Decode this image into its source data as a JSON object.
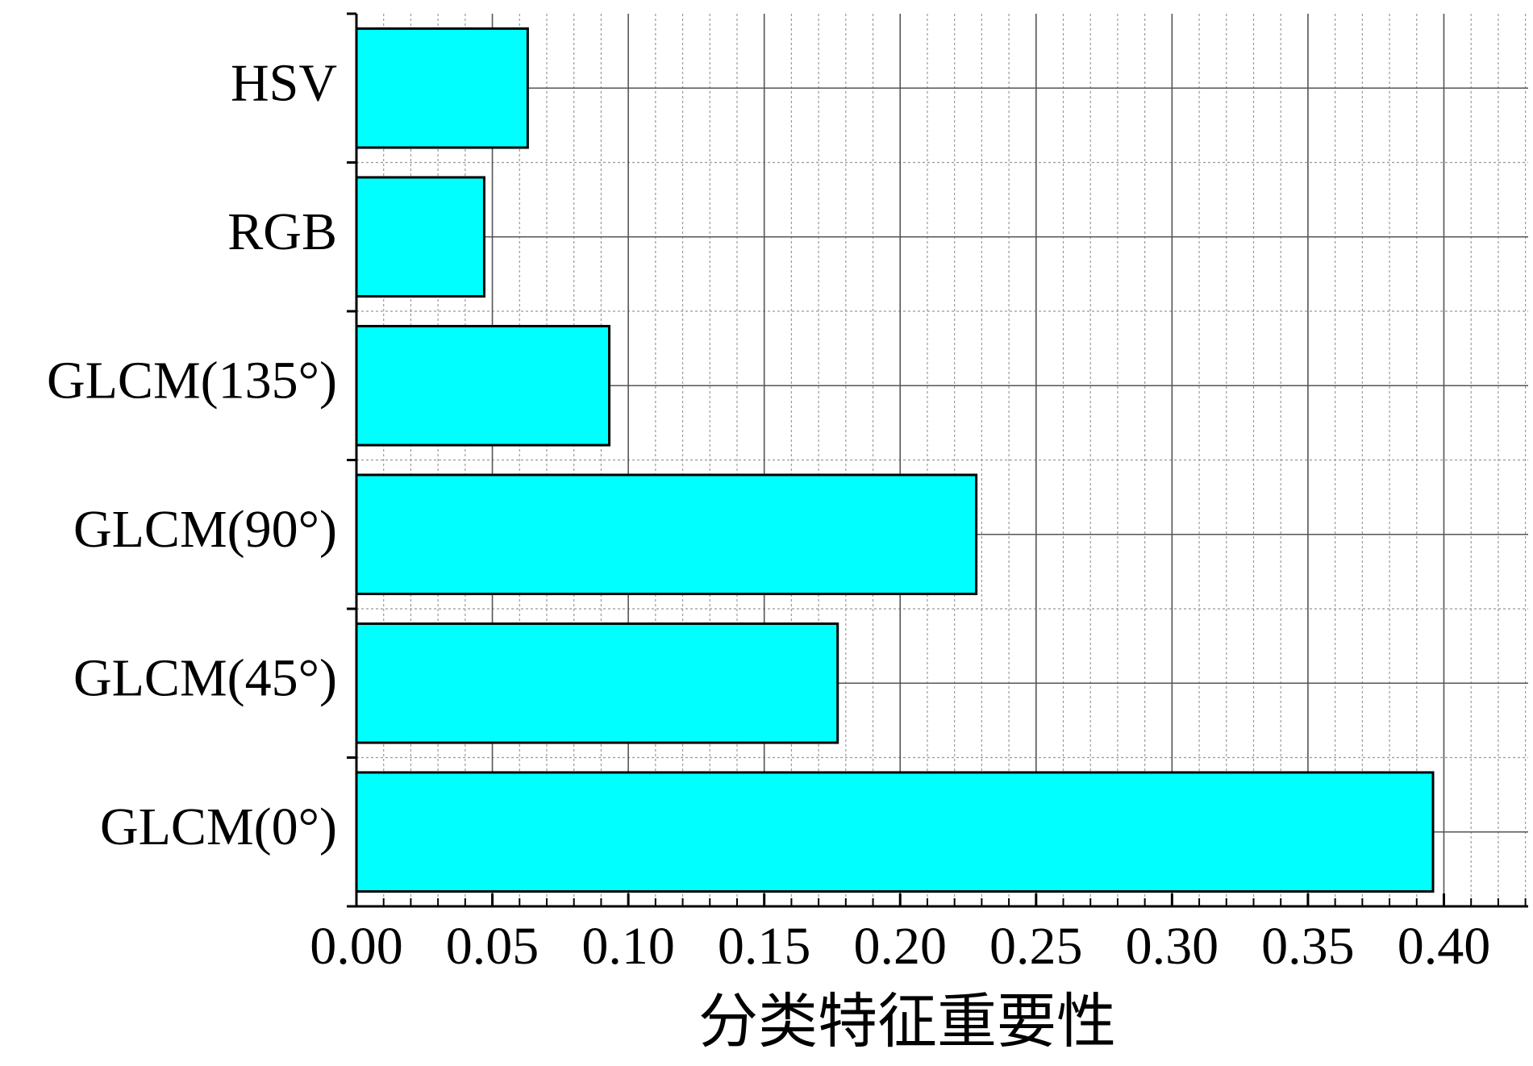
{
  "chart_data": {
    "type": "barh",
    "x_label": "分类特征重要性",
    "categories": [
      "HSV",
      "RGB",
      "GLCM(135°)",
      "GLCM(90°)",
      "GLCM(45°)",
      "GLCM(0°)"
    ],
    "values": [
      0.063,
      0.047,
      0.093,
      0.228,
      0.177,
      0.396
    ],
    "color": "#00ffff",
    "xlim": [
      0,
      0.431
    ],
    "xticks": [
      {
        "value": 0,
        "label": "0.00"
      },
      {
        "value": 0.05,
        "label": "0.05"
      },
      {
        "value": 0.1,
        "label": "0.10"
      },
      {
        "value": 0.15,
        "label": "0.15"
      },
      {
        "value": 0.2,
        "label": "0.20"
      },
      {
        "value": 0.25,
        "label": "0.25"
      },
      {
        "value": 0.3,
        "label": "0.30"
      },
      {
        "value": 0.35,
        "label": "0.35"
      },
      {
        "value": 0.4,
        "label": "0.40"
      }
    ],
    "grid": true,
    "minor_grid": true
  }
}
